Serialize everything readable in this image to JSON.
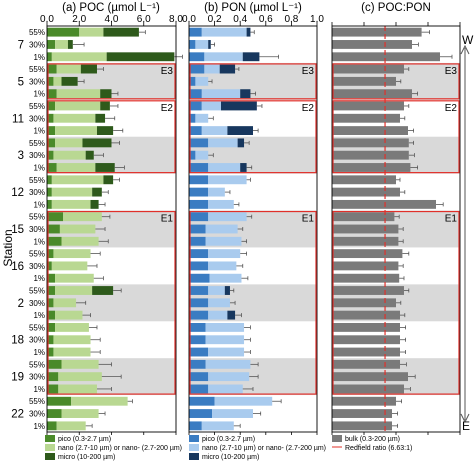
{
  "figure": {
    "ylabel": "Station",
    "strata_labels": [
      "55%",
      "30%",
      "1%"
    ],
    "direction_top": "W",
    "direction_bottom": "E"
  },
  "stations": [
    "7",
    "5",
    "11",
    "3",
    "12",
    "15",
    "16",
    "2",
    "18",
    "19",
    "22"
  ],
  "shaded_stations": [
    false,
    true,
    false,
    true,
    false,
    true,
    false,
    true,
    false,
    true,
    false
  ],
  "region_boxes": [
    {
      "label": "E3",
      "from_station": 1,
      "to_station": 1
    },
    {
      "label": "E2",
      "from_station": 2,
      "to_station": 3
    },
    {
      "label": "E1",
      "from_station": 5,
      "to_station": 9
    }
  ],
  "chart_data": [
    {
      "type": "bar",
      "orientation": "horizontal",
      "stacked": true,
      "title": "(a) POC (µmol L⁻¹)",
      "xlim": [
        0,
        8
      ],
      "xticks": [
        0,
        2,
        4,
        6,
        8
      ],
      "xtick_labels": [
        "0.0",
        "2.0",
        "4.0",
        "6.0",
        "8.0"
      ],
      "series": [
        {
          "name": "pico (0.3-2.7 µm)",
          "color": "#4a8a2a",
          "values": [
            [
              2.0,
              0.5,
              0.3
            ],
            [
              0.6,
              0.4,
              0.6
            ],
            [
              0.5,
              0.4,
              0.5
            ],
            [
              0.5,
              0.4,
              0.6
            ],
            [
              0.3,
              0.3,
              0.3
            ],
            [
              1.0,
              0.8,
              0.9
            ],
            [
              0.4,
              0.3,
              0.5
            ],
            [
              0.5,
              0.4,
              0.5
            ],
            [
              0.5,
              0.4,
              0.4
            ],
            [
              0.9,
              0.7,
              0.7
            ],
            [
              1.5,
              0.9,
              0.6
            ]
          ]
        },
        {
          "name": "nano (2.7-10 µm) or nano- (2.7-200 µm)",
          "color": "#b9d892",
          "values": [
            [
              1.5,
              0.8,
              3.4
            ],
            [
              1.5,
              0.5,
              2.7
            ],
            [
              2.8,
              2.6,
              2.6
            ],
            [
              1.7,
              2.0,
              2.4
            ],
            [
              3.2,
              2.5,
              2.4
            ],
            [
              2.4,
              2.2,
              2.3
            ],
            [
              2.3,
              2.2,
              2.4
            ],
            [
              2.3,
              1.4,
              1.7
            ],
            [
              2.1,
              2.3,
              2.3
            ],
            [
              2.3,
              2.7,
              2.4
            ],
            [
              3.5,
              2.3,
              1.8
            ]
          ]
        },
        {
          "name": "micro (10-200 µm)",
          "color": "#2e5a1b",
          "values": [
            [
              2.2,
              0.3,
              4.2
            ],
            [
              1.0,
              1.0,
              0.7
            ],
            [
              0.6,
              0.6,
              1.0
            ],
            [
              1.8,
              0.5,
              1.2
            ],
            [
              0.6,
              0.6,
              0.5
            ],
            [
              0,
              0,
              0
            ],
            [
              0,
              0,
              0
            ],
            [
              1.3,
              0,
              0
            ],
            [
              0,
              0,
              0
            ],
            [
              0,
              0,
              0
            ],
            [
              0,
              0,
              0
            ]
          ]
        }
      ],
      "errors": [
        [
          0.4,
          0.7,
          0.5
        ],
        [
          0.4,
          0.4,
          0.4
        ],
        [
          0.5,
          0.6,
          0.6
        ],
        [
          0.5,
          0.6,
          0.6
        ],
        [
          0.4,
          0.4,
          0.4
        ],
        [
          0.5,
          0.6,
          0.6
        ],
        [
          0.6,
          0.6,
          0.6
        ],
        [
          0.5,
          0.6,
          0.5
        ],
        [
          0.5,
          0.6,
          0.6
        ],
        [
          0.8,
          1.2,
          0.9
        ],
        [
          0.3,
          0.4,
          0.4
        ]
      ]
    },
    {
      "type": "bar",
      "orientation": "horizontal",
      "stacked": true,
      "title": "(b) PON (µmol L⁻¹)",
      "xlim": [
        0,
        1
      ],
      "xticks": [
        0,
        0.2,
        0.4,
        0.6,
        0.8,
        1.0
      ],
      "xtick_labels": [
        "0.0",
        "0.2",
        "0.4",
        "0.6",
        "0.8",
        "1.0"
      ],
      "series": [
        {
          "name": "pico (0.3-2.7 µm)",
          "color": "#3a7cc2",
          "values": [
            [
              0.1,
              0.05,
              0.12
            ],
            [
              0.12,
              0.05,
              0.1
            ],
            [
              0.1,
              0.05,
              0.1
            ],
            [
              0.15,
              0.05,
              0.15
            ],
            [
              0.15,
              0.15,
              0.15
            ],
            [
              0.15,
              0.13,
              0.13
            ],
            [
              0.15,
              0.15,
              0.16
            ],
            [
              0.15,
              0.15,
              0.15
            ],
            [
              0.13,
              0.13,
              0.15
            ],
            [
              0.13,
              0.15,
              0.15
            ],
            [
              0.2,
              0.18,
              0.1
            ]
          ]
        },
        {
          "name": "nano (2.7-10 µm) or nano- (2.7-200 µm)",
          "color": "#a9cbee",
          "values": [
            [
              0.35,
              0.1,
              0.3
            ],
            [
              0.12,
              0.1,
              0.3
            ],
            [
              0.15,
              0.1,
              0.2
            ],
            [
              0.23,
              0.1,
              0.25
            ],
            [
              0.3,
              0.13,
              0.2
            ],
            [
              0.3,
              0.25,
              0.28
            ],
            [
              0.25,
              0.22,
              0.25
            ],
            [
              0.13,
              0.17,
              0.15
            ],
            [
              0.3,
              0.3,
              0.28
            ],
            [
              0.35,
              0.32,
              0.27
            ],
            [
              0.45,
              0.32,
              0.25
            ]
          ]
        },
        {
          "name": "micro (10-200 µm)",
          "color": "#17375e",
          "values": [
            [
              0.03,
              0.02,
              0.13
            ],
            [
              0.12,
              0.0,
              0.08
            ],
            [
              0.28,
              0.0,
              0.2
            ],
            [
              0.05,
              0.0,
              0.05
            ],
            [
              0.0,
              0.0,
              0.0
            ],
            [
              0.0,
              0.0,
              0.0
            ],
            [
              0.0,
              0.0,
              0.0
            ],
            [
              0.04,
              0.0,
              0.06
            ],
            [
              0.0,
              0.0,
              0.0
            ],
            [
              0.0,
              0.0,
              0.0
            ],
            [
              0.0,
              0.0,
              0.0
            ]
          ]
        }
      ],
      "errors": [
        [
          0.03,
          0.03,
          0.15
        ],
        [
          0.03,
          0.03,
          0.04
        ],
        [
          0.04,
          0.04,
          0.04
        ],
        [
          0.04,
          0.04,
          0.04
        ],
        [
          0.03,
          0.04,
          0.04
        ],
        [
          0.04,
          0.04,
          0.04
        ],
        [
          0.05,
          0.05,
          0.05
        ],
        [
          0.03,
          0.04,
          0.05
        ],
        [
          0.05,
          0.05,
          0.05
        ],
        [
          0.06,
          0.07,
          0.08
        ],
        [
          0.07,
          0.06,
          0.05
        ]
      ]
    },
    {
      "type": "bar",
      "orientation": "horizontal",
      "title": "(c) POC:PON",
      "xlim": [
        0,
        16
      ],
      "xticks": [
        0,
        4,
        8,
        12,
        16
      ],
      "series": [
        {
          "name": "bulk (0.3-200 µm)",
          "color": "#7a7a7a",
          "values": [
            [
              11.2,
              10.0,
              13.5
            ],
            [
              9.0,
              8.0,
              10.0
            ],
            [
              9.0,
              8.5,
              9.5
            ],
            [
              9.6,
              9.6,
              9.8
            ],
            [
              8.0,
              8.5,
              13.0
            ],
            [
              7.8,
              8.3,
              8.3
            ],
            [
              8.8,
              8.3,
              8.4
            ],
            [
              9.0,
              8.0,
              8.5
            ],
            [
              8.5,
              8.5,
              8.5
            ],
            [
              8.5,
              9.5,
              9.0
            ],
            [
              8.0,
              7.5,
              7.5
            ]
          ]
        }
      ],
      "errors": [
        [
          1.0,
          0.8,
          1.5
        ],
        [
          0.6,
          0.6,
          0.7
        ],
        [
          0.6,
          0.6,
          0.7
        ],
        [
          0.6,
          0.7,
          0.9
        ],
        [
          0.5,
          0.6,
          0.9
        ],
        [
          0.6,
          0.6,
          0.6
        ],
        [
          0.8,
          0.6,
          0.6
        ],
        [
          0.6,
          0.6,
          0.6
        ],
        [
          0.7,
          0.7,
          0.7
        ],
        [
          0.8,
          0.9,
          0.8
        ],
        [
          0.7,
          0.7,
          0.7
        ]
      ],
      "reference_line": {
        "name": "Redfield ratio (6.63:1)",
        "value": 6.63,
        "color": "#e0302a"
      }
    }
  ]
}
